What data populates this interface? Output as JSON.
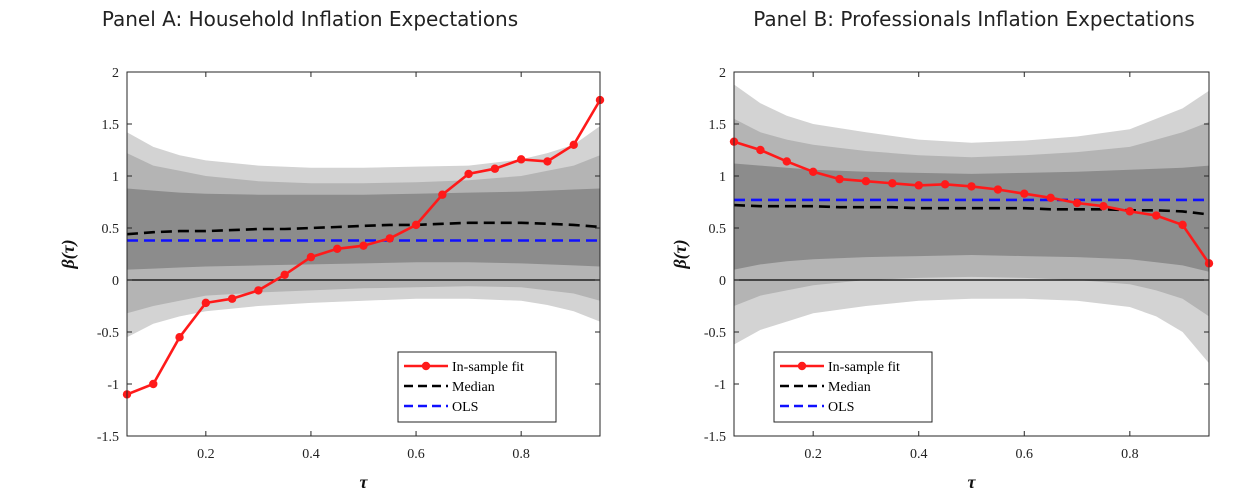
{
  "colors": {
    "fit": "#ff1a1a",
    "median": "#000000",
    "ols": "#1010ff",
    "band_outer": "#d3d3d3",
    "band_mid": "#b4b4b4",
    "band_inner": "#8c8c8c",
    "zero_line": "#000000"
  },
  "chart_data": [
    {
      "type": "line",
      "title": "Panel A: Household Inflation Expectations",
      "xlabel": "τ",
      "ylabel": "β(τ)",
      "xlim": [
        0.05,
        0.95
      ],
      "ylim": [
        -1.5,
        2
      ],
      "xticks": [
        0.2,
        0.4,
        0.6,
        0.8
      ],
      "xtick_labels": [
        "0.2",
        "0.4",
        "0.6",
        "0.8"
      ],
      "yticks": [
        -1.5,
        -1,
        -0.5,
        0,
        0.5,
        1,
        1.5,
        2
      ],
      "ytick_labels": [
        "-1.5",
        "-1",
        "-0.5",
        "0",
        "0.5",
        "1",
        "1.5",
        "2"
      ],
      "legend_position": "bottom-right",
      "x": [
        0.05,
        0.1,
        0.15,
        0.2,
        0.25,
        0.3,
        0.35,
        0.4,
        0.45,
        0.5,
        0.55,
        0.6,
        0.65,
        0.7,
        0.75,
        0.8,
        0.85,
        0.9,
        0.95
      ],
      "series": [
        {
          "name": "In-sample fit",
          "style": "line-marker",
          "values": [
            -1.1,
            -1.0,
            -0.55,
            -0.22,
            -0.18,
            -0.1,
            0.05,
            0.22,
            0.3,
            0.33,
            0.4,
            0.53,
            0.82,
            1.02,
            1.07,
            1.16,
            1.14,
            1.3,
            1.73
          ]
        },
        {
          "name": "Median",
          "style": "dashed",
          "values": [
            0.44,
            0.46,
            0.47,
            0.47,
            0.48,
            0.49,
            0.49,
            0.5,
            0.51,
            0.52,
            0.53,
            0.53,
            0.54,
            0.55,
            0.55,
            0.55,
            0.54,
            0.53,
            0.51
          ]
        },
        {
          "name": "OLS",
          "style": "dashed",
          "values": [
            0.38,
            0.38,
            0.38,
            0.38,
            0.38,
            0.38,
            0.38,
            0.38,
            0.38,
            0.38,
            0.38,
            0.38,
            0.38,
            0.38,
            0.38,
            0.38,
            0.38,
            0.38,
            0.38
          ]
        }
      ],
      "bands": [
        {
          "level": "outer",
          "x": [
            0.05,
            0.1,
            0.15,
            0.2,
            0.3,
            0.4,
            0.5,
            0.6,
            0.7,
            0.8,
            0.85,
            0.9,
            0.95
          ],
          "upper": [
            1.42,
            1.28,
            1.2,
            1.15,
            1.1,
            1.08,
            1.08,
            1.09,
            1.1,
            1.16,
            1.22,
            1.3,
            1.48
          ],
          "lower": [
            -0.55,
            -0.42,
            -0.35,
            -0.3,
            -0.25,
            -0.22,
            -0.2,
            -0.18,
            -0.18,
            -0.2,
            -0.24,
            -0.3,
            -0.4
          ]
        },
        {
          "level": "mid",
          "x": [
            0.05,
            0.1,
            0.15,
            0.2,
            0.3,
            0.4,
            0.5,
            0.6,
            0.7,
            0.8,
            0.85,
            0.9,
            0.95
          ],
          "upper": [
            1.22,
            1.1,
            1.05,
            1.0,
            0.95,
            0.93,
            0.93,
            0.94,
            0.96,
            1.0,
            1.05,
            1.1,
            1.2
          ],
          "lower": [
            -0.32,
            -0.25,
            -0.2,
            -0.15,
            -0.12,
            -0.1,
            -0.08,
            -0.07,
            -0.06,
            -0.07,
            -0.1,
            -0.13,
            -0.2
          ]
        },
        {
          "level": "inner",
          "x": [
            0.05,
            0.1,
            0.15,
            0.2,
            0.3,
            0.4,
            0.5,
            0.6,
            0.7,
            0.8,
            0.85,
            0.9,
            0.95
          ],
          "upper": [
            0.88,
            0.86,
            0.84,
            0.83,
            0.82,
            0.82,
            0.82,
            0.83,
            0.84,
            0.85,
            0.86,
            0.87,
            0.88
          ],
          "lower": [
            0.1,
            0.11,
            0.12,
            0.13,
            0.14,
            0.15,
            0.16,
            0.17,
            0.17,
            0.16,
            0.15,
            0.14,
            0.13
          ]
        }
      ]
    },
    {
      "type": "line",
      "title": "Panel B: Professionals Inflation Expectations",
      "xlabel": "τ",
      "ylabel": "β(τ)",
      "xlim": [
        0.05,
        0.95
      ],
      "ylim": [
        -1.5,
        2
      ],
      "xticks": [
        0.2,
        0.4,
        0.6,
        0.8
      ],
      "xtick_labels": [
        "0.2",
        "0.4",
        "0.6",
        "0.8"
      ],
      "yticks": [
        -1.5,
        -1,
        -0.5,
        0,
        0.5,
        1,
        1.5,
        2
      ],
      "ytick_labels": [
        "-1.5",
        "-1",
        "-0.5",
        "0",
        "0.5",
        "1",
        "1.5",
        "2"
      ],
      "legend_position": "bottom-left",
      "x": [
        0.05,
        0.1,
        0.15,
        0.2,
        0.25,
        0.3,
        0.35,
        0.4,
        0.45,
        0.5,
        0.55,
        0.6,
        0.65,
        0.7,
        0.75,
        0.8,
        0.85,
        0.9,
        0.95
      ],
      "series": [
        {
          "name": "In-sample fit",
          "style": "line-marker",
          "values": [
            1.33,
            1.25,
            1.14,
            1.04,
            0.97,
            0.95,
            0.93,
            0.91,
            0.92,
            0.9,
            0.87,
            0.83,
            0.79,
            0.74,
            0.71,
            0.66,
            0.62,
            0.53,
            0.16
          ]
        },
        {
          "name": "Median",
          "style": "dashed",
          "values": [
            0.72,
            0.71,
            0.71,
            0.71,
            0.7,
            0.7,
            0.7,
            0.69,
            0.69,
            0.69,
            0.69,
            0.69,
            0.68,
            0.68,
            0.68,
            0.67,
            0.67,
            0.66,
            0.63
          ]
        },
        {
          "name": "OLS",
          "style": "dashed",
          "values": [
            0.77,
            0.77,
            0.77,
            0.77,
            0.77,
            0.77,
            0.77,
            0.77,
            0.77,
            0.77,
            0.77,
            0.77,
            0.77,
            0.77,
            0.77,
            0.77,
            0.77,
            0.77,
            0.77
          ]
        }
      ],
      "bands": [
        {
          "level": "outer",
          "x": [
            0.05,
            0.1,
            0.15,
            0.2,
            0.3,
            0.4,
            0.5,
            0.6,
            0.7,
            0.8,
            0.85,
            0.9,
            0.95
          ],
          "upper": [
            1.88,
            1.7,
            1.58,
            1.5,
            1.42,
            1.35,
            1.32,
            1.34,
            1.38,
            1.45,
            1.55,
            1.65,
            1.82
          ],
          "lower": [
            -0.62,
            -0.48,
            -0.4,
            -0.32,
            -0.25,
            -0.2,
            -0.18,
            -0.18,
            -0.2,
            -0.26,
            -0.35,
            -0.5,
            -0.8
          ]
        },
        {
          "level": "mid",
          "x": [
            0.05,
            0.1,
            0.15,
            0.2,
            0.3,
            0.4,
            0.5,
            0.6,
            0.7,
            0.8,
            0.85,
            0.9,
            0.95
          ],
          "upper": [
            1.55,
            1.42,
            1.35,
            1.3,
            1.24,
            1.2,
            1.18,
            1.2,
            1.23,
            1.28,
            1.35,
            1.42,
            1.52
          ],
          "lower": [
            -0.25,
            -0.15,
            -0.1,
            -0.05,
            0.0,
            0.02,
            0.03,
            0.02,
            0.0,
            -0.04,
            -0.1,
            -0.18,
            -0.35
          ]
        },
        {
          "level": "inner",
          "x": [
            0.05,
            0.1,
            0.15,
            0.2,
            0.3,
            0.4,
            0.5,
            0.6,
            0.7,
            0.8,
            0.85,
            0.9,
            0.95
          ],
          "upper": [
            1.12,
            1.1,
            1.08,
            1.06,
            1.04,
            1.03,
            1.02,
            1.03,
            1.04,
            1.06,
            1.07,
            1.08,
            1.1
          ],
          "lower": [
            0.1,
            0.15,
            0.18,
            0.2,
            0.22,
            0.23,
            0.24,
            0.23,
            0.22,
            0.2,
            0.17,
            0.14,
            0.08
          ]
        }
      ]
    }
  ]
}
